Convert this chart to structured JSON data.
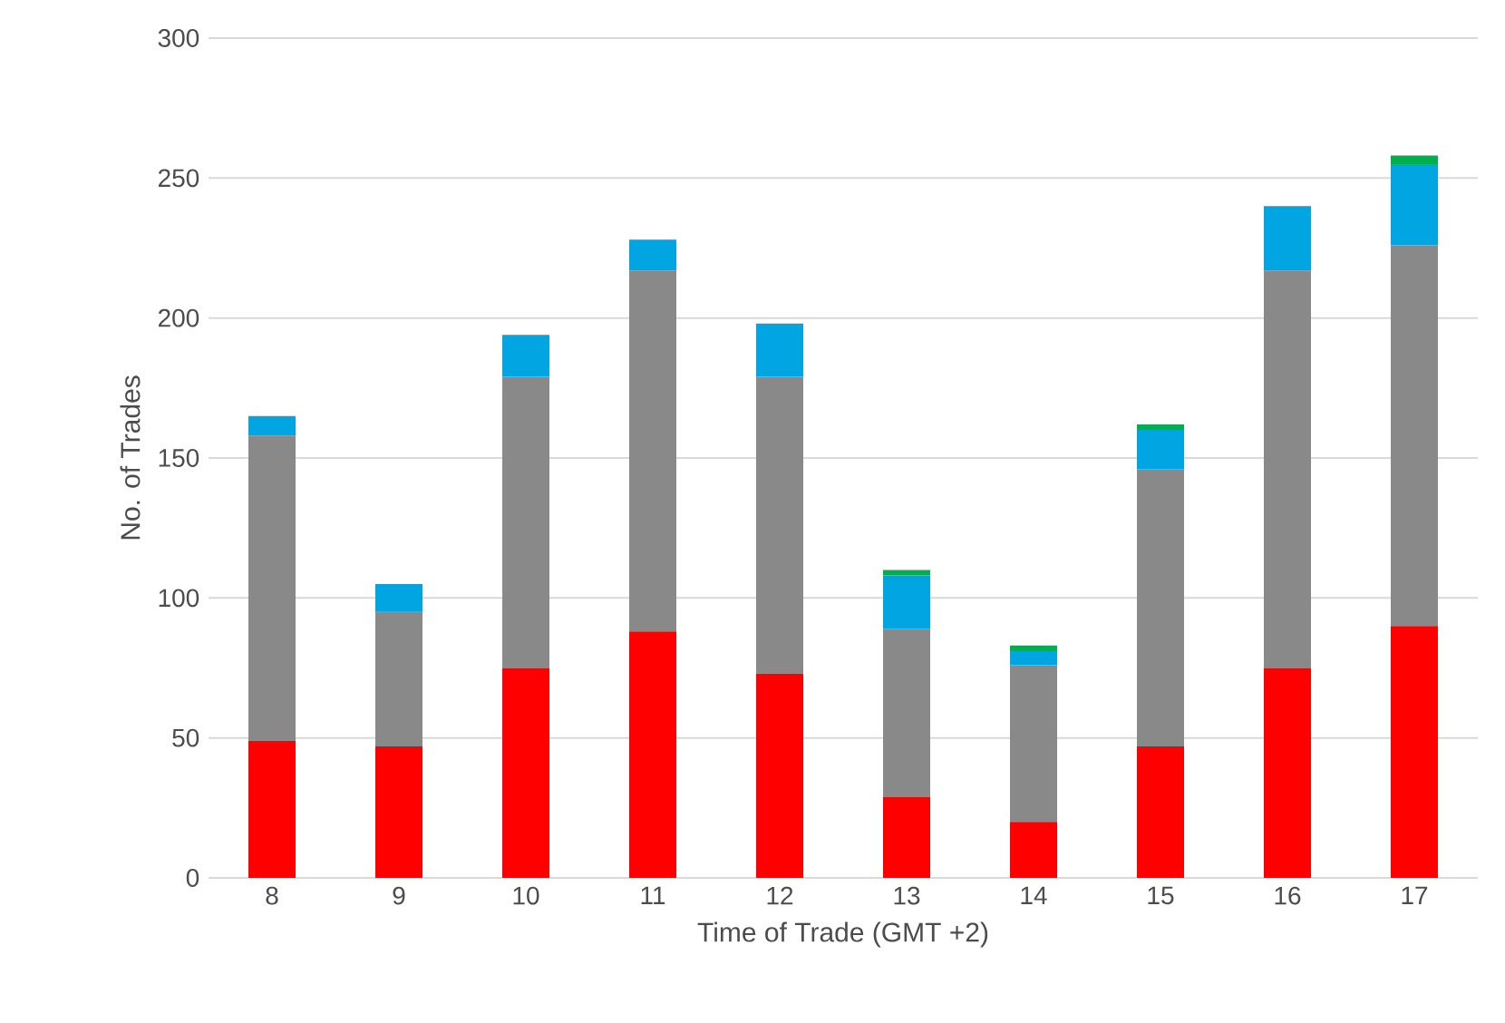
{
  "chart_data": {
    "type": "bar",
    "stacked": true,
    "xlabel": "Time of Trade (GMT +2)",
    "ylabel": "No. of Trades",
    "categories": [
      "8",
      "9",
      "10",
      "11",
      "12",
      "13",
      "14",
      "15",
      "16",
      "17"
    ],
    "series": [
      {
        "color": "#ff0000",
        "values": [
          49,
          47,
          75,
          88,
          73,
          29,
          20,
          47,
          75,
          90
        ]
      },
      {
        "color": "#898989",
        "values": [
          109,
          48,
          104,
          129,
          106,
          60,
          56,
          99,
          142,
          136
        ]
      },
      {
        "color": "#00a5e1",
        "values": [
          7,
          10,
          15,
          11,
          19,
          19,
          5,
          14,
          23,
          29
        ]
      },
      {
        "color": "#00b050",
        "values": [
          0,
          0,
          0,
          0,
          0,
          2,
          2,
          2,
          0,
          3
        ]
      }
    ],
    "ylim": [
      0,
      300
    ],
    "yticks": [
      0,
      50,
      100,
      150,
      200,
      250,
      300
    ],
    "grid": "y"
  }
}
